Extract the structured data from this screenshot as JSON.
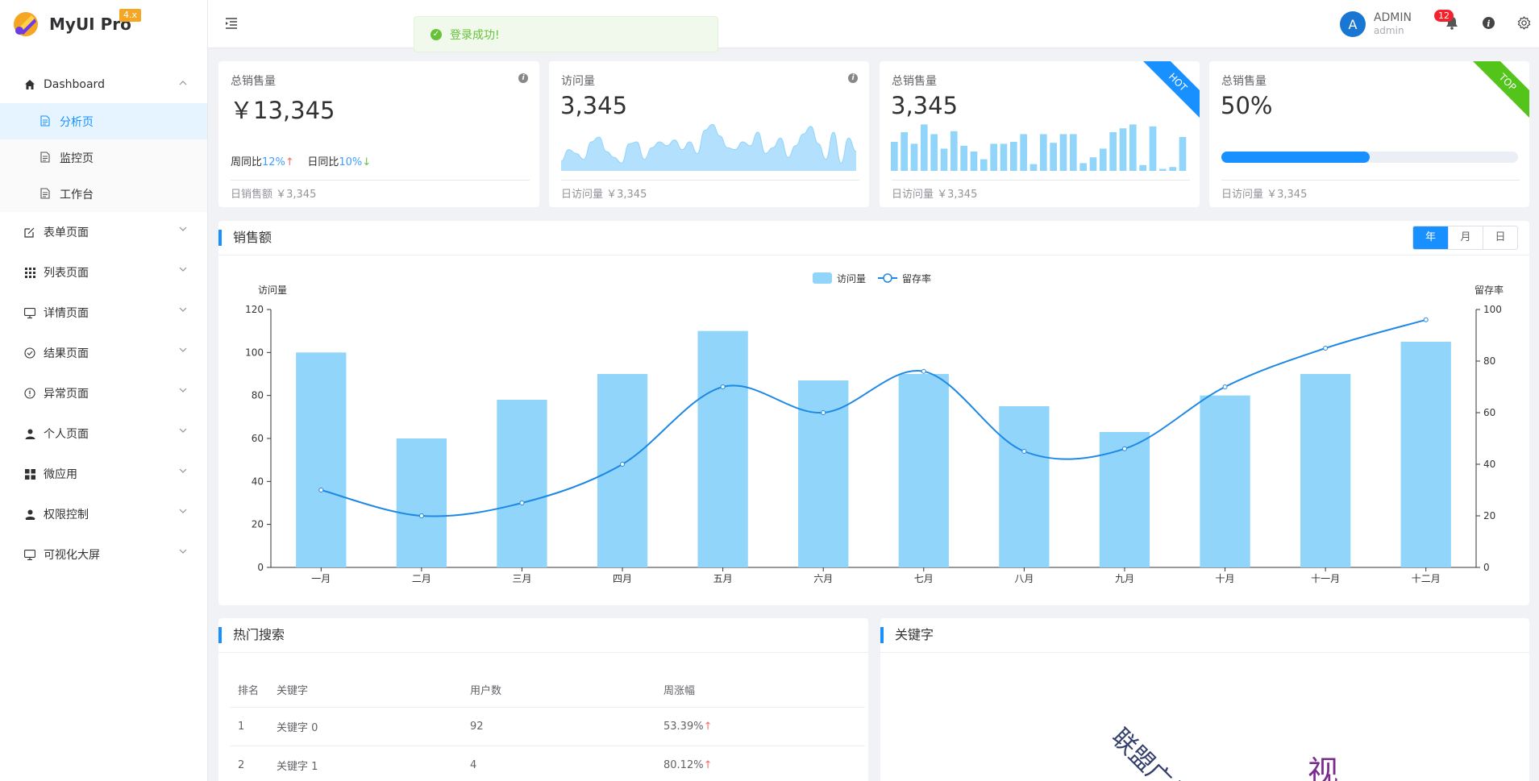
{
  "app": {
    "name": "MyUI Pro",
    "version": "4.x"
  },
  "header": {
    "toast": "登录成功!",
    "user": {
      "avatar_letter": "A",
      "name": "ADMIN",
      "role": "admin"
    },
    "notification_count": "12",
    "icons": [
      "menu-fold-icon",
      "bell-icon",
      "info-icon",
      "gear-icon"
    ]
  },
  "sidebar": {
    "dashboard": {
      "label": "Dashboard",
      "children": [
        "分析页",
        "监控页",
        "工作台"
      ]
    },
    "items": [
      "表单页面",
      "列表页面",
      "详情页面",
      "结果页面",
      "异常页面",
      "个人页面",
      "微应用",
      "权限控制",
      "可视化大屏"
    ]
  },
  "stats": [
    {
      "title": "总销售量",
      "value": "￥13,345",
      "week_label": "周同比",
      "week_value": "12%",
      "day_label": "日同比",
      "day_value": "10%",
      "footer": "日销售额 ￥3,345"
    },
    {
      "title": "访问量",
      "value": "3,345",
      "footer": "日访问量 ￥3,345"
    },
    {
      "title": "总销售量",
      "value": "3,345",
      "ribbon": "HOT",
      "footer": "日访问量 ￥3,345"
    },
    {
      "title": "总销售量",
      "value": "50%",
      "ribbon": "TOP",
      "progress": 0.5,
      "footer": "日访问量 ￥3,345"
    }
  ],
  "sparkline_bars": [
    30,
    40,
    28,
    48,
    38,
    23,
    41,
    26,
    20,
    12,
    28,
    28,
    30,
    38,
    7,
    38,
    29,
    38,
    38,
    8,
    14,
    23,
    40,
    44,
    48,
    6,
    46,
    2,
    4,
    35
  ],
  "sparkline_area": [
    10,
    22,
    18,
    12,
    30,
    35,
    20,
    14,
    8,
    28,
    30,
    12,
    24,
    30,
    26,
    32,
    22,
    30,
    18,
    42,
    48,
    36,
    24,
    22,
    30,
    26,
    40,
    18,
    24,
    34,
    14,
    26,
    38,
    46,
    28,
    12,
    40,
    8,
    34,
    20
  ],
  "sales": {
    "title": "销售额",
    "periods": [
      "年",
      "月",
      "日"
    ],
    "active_period": "年",
    "chart_data": {
      "type": "bar",
      "categories": [
        "一月",
        "二月",
        "三月",
        "四月",
        "五月",
        "六月",
        "七月",
        "八月",
        "九月",
        "十月",
        "十一月",
        "十二月"
      ],
      "series": [
        {
          "name": "访问量",
          "type": "bar",
          "axis": "left",
          "values": [
            100,
            60,
            78,
            90,
            110,
            87,
            90,
            75,
            63,
            80,
            90,
            105
          ],
          "color": "#91d5fb"
        },
        {
          "name": "留存率",
          "type": "line",
          "axis": "right",
          "values": [
            30,
            20,
            25,
            40,
            70,
            60,
            76,
            45,
            46,
            70,
            85,
            96
          ],
          "color": "#1e88e5"
        }
      ],
      "ylabel_left": "访问量",
      "ylabel_right": "留存率",
      "ylim_left": [
        0,
        120
      ],
      "ylim_right": [
        0,
        100
      ],
      "yticks_left": [
        0,
        20,
        40,
        60,
        80,
        100,
        120
      ],
      "yticks_right": [
        0,
        20,
        40,
        60,
        80,
        100
      ],
      "legend": "top-center"
    }
  },
  "hot_search": {
    "title": "热门搜索",
    "columns": [
      "排名",
      "关键字",
      "用户数",
      "周涨幅"
    ],
    "rows": [
      {
        "rank": "1",
        "keyword": "关键字 0",
        "users": "92",
        "growth": "53.39%"
      },
      {
        "rank": "2",
        "keyword": "关键字 1",
        "users": "4",
        "growth": "80.12%"
      }
    ]
  },
  "keywords": {
    "title": "关键字",
    "words": [
      {
        "text": "联盟广告",
        "color": "#333f6a"
      },
      {
        "text": "视",
        "color": "#7b2a90"
      }
    ]
  }
}
